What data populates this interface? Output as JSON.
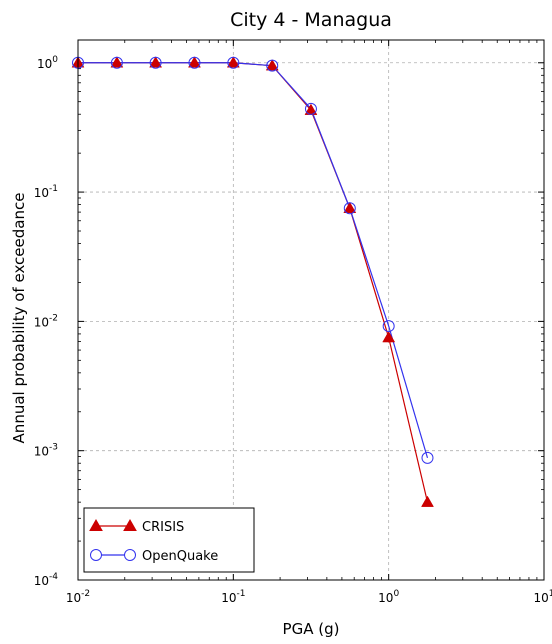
{
  "chart_data": {
    "type": "line",
    "title": "City 4 - Managua",
    "xlabel": "PGA (g)",
    "ylabel": "Annual probability of exceedance",
    "xscale": "log",
    "yscale": "log",
    "xlim": [
      0.01,
      10
    ],
    "ylim": [
      0.0001,
      1.5
    ],
    "grid": true,
    "legend_position": "bottom-left",
    "x_ticks": [
      {
        "value": 0.01,
        "base": "10",
        "exp": "-2"
      },
      {
        "value": 0.1,
        "base": "10",
        "exp": "-1"
      },
      {
        "value": 1,
        "base": "10",
        "exp": "0"
      },
      {
        "value": 10,
        "base": "10",
        "exp": "1"
      }
    ],
    "y_ticks": [
      {
        "value": 0.0001,
        "base": "10",
        "exp": "-4"
      },
      {
        "value": 0.001,
        "base": "10",
        "exp": "-3"
      },
      {
        "value": 0.01,
        "base": "10",
        "exp": "-2"
      },
      {
        "value": 0.1,
        "base": "10",
        "exp": "-1"
      },
      {
        "value": 1,
        "base": "10",
        "exp": "0"
      }
    ],
    "series": [
      {
        "name": "CRISIS",
        "color": "#cc0000",
        "marker": "triangle",
        "x": [
          0.01,
          0.0178,
          0.0316,
          0.0562,
          0.1,
          0.178,
          0.316,
          0.562,
          1.0,
          1.778
        ],
        "y": [
          1.0,
          1.0,
          1.0,
          1.0,
          1.0,
          0.95,
          0.43,
          0.075,
          0.0075,
          0.0004
        ]
      },
      {
        "name": "OpenQuake",
        "color": "#3333ee",
        "marker": "circle",
        "x": [
          0.01,
          0.0178,
          0.0316,
          0.0562,
          0.1,
          0.178,
          0.316,
          0.562,
          1.0,
          1.778
        ],
        "y": [
          1.0,
          1.0,
          1.0,
          1.0,
          1.0,
          0.95,
          0.44,
          0.075,
          0.0092,
          0.00088
        ]
      }
    ]
  }
}
